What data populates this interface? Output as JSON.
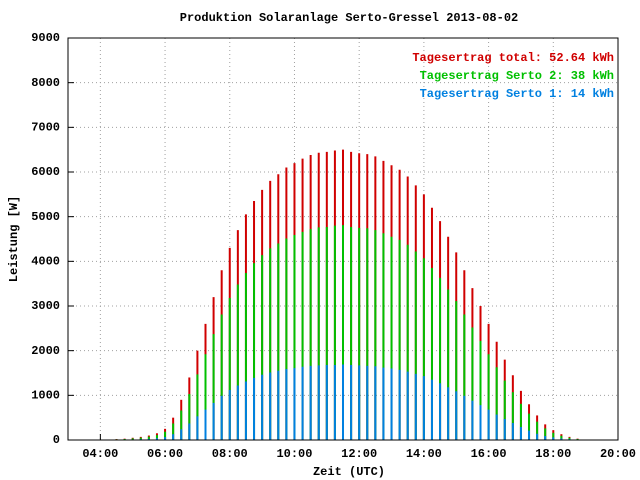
{
  "chart_data": {
    "type": "impulse",
    "title": "Produktion Solaranlage Serto-Gressel 2013-08-02",
    "x_label": "Zeit (UTC)",
    "y_label": "Leistung [W]",
    "x": [
      4.5,
      4.75,
      5,
      5.25,
      5.5,
      5.75,
      6,
      6.25,
      6.5,
      6.75,
      7,
      7.25,
      7.5,
      7.75,
      8,
      8.25,
      8.5,
      8.75,
      9,
      9.25,
      9.5,
      9.75,
      10,
      10.25,
      10.5,
      10.75,
      11,
      11.25,
      11.5,
      11.75,
      12,
      12.25,
      12.5,
      12.75,
      13,
      13.25,
      13.5,
      13.75,
      14,
      14.25,
      14.5,
      14.75,
      15,
      15.25,
      15.5,
      15.75,
      16,
      16.25,
      16.5,
      16.75,
      17,
      17.25,
      17.5,
      17.75,
      18,
      18.25,
      18.5,
      18.75,
      19
    ],
    "series": [
      {
        "name": "Tagesertrag total: 52.64 kWh",
        "color": "#d00000",
        "values": [
          20,
          30,
          50,
          70,
          100,
          150,
          250,
          500,
          900,
          1400,
          2000,
          2600,
          3200,
          3800,
          4300,
          4700,
          5050,
          5350,
          5600,
          5800,
          5950,
          6100,
          6200,
          6300,
          6380,
          6430,
          6450,
          6480,
          6500,
          6450,
          6420,
          6400,
          6350,
          6250,
          6150,
          6050,
          5900,
          5700,
          5500,
          5200,
          4900,
          4550,
          4200,
          3800,
          3400,
          3000,
          2600,
          2200,
          1800,
          1450,
          1100,
          800,
          550,
          350,
          220,
          130,
          70,
          30,
          10
        ]
      },
      {
        "name": "Tagesertrag Serto 2: 38 kWh",
        "color": "#00c000",
        "values": [
          15,
          22,
          37,
          52,
          75,
          110,
          185,
          370,
          660,
          1030,
          1470,
          1920,
          2370,
          2810,
          3180,
          3480,
          3740,
          3960,
          4140,
          4290,
          4400,
          4510,
          4590,
          4660,
          4720,
          4760,
          4770,
          4800,
          4810,
          4770,
          4750,
          4740,
          4700,
          4630,
          4550,
          4480,
          4370,
          4220,
          4070,
          3850,
          3630,
          3370,
          3110,
          2810,
          2520,
          2220,
          1920,
          1630,
          1330,
          1070,
          810,
          590,
          410,
          260,
          160,
          95,
          50,
          22,
          8
        ]
      },
      {
        "name": "Tagesertrag Serto 1: 14 kWh",
        "color": "#0080e0",
        "values": [
          5,
          8,
          13,
          18,
          25,
          40,
          65,
          130,
          240,
          370,
          530,
          680,
          830,
          990,
          1120,
          1220,
          1310,
          1390,
          1460,
          1510,
          1550,
          1590,
          1610,
          1640,
          1660,
          1670,
          1680,
          1680,
          1690,
          1680,
          1670,
          1660,
          1650,
          1620,
          1600,
          1570,
          1530,
          1480,
          1430,
          1350,
          1270,
          1180,
          1090,
          990,
          880,
          780,
          680,
          570,
          470,
          380,
          290,
          210,
          140,
          90,
          60,
          35,
          20,
          8,
          3
        ]
      }
    ],
    "xlim": [
      3,
      20
    ],
    "xticks": [
      {
        "value": 4,
        "label": "04:00"
      },
      {
        "value": 6,
        "label": "06:00"
      },
      {
        "value": 8,
        "label": "08:00"
      },
      {
        "value": 10,
        "label": "10:00"
      },
      {
        "value": 12,
        "label": "12:00"
      },
      {
        "value": 14,
        "label": "14:00"
      },
      {
        "value": 16,
        "label": "16:00"
      },
      {
        "value": 18,
        "label": "18:00"
      },
      {
        "value": 20,
        "label": "20:00"
      }
    ],
    "ylim": [
      0,
      9000
    ],
    "yticks": [
      0,
      1000,
      2000,
      3000,
      4000,
      5000,
      6000,
      7000,
      8000,
      9000
    ],
    "grid": true,
    "legend": "top-right"
  }
}
